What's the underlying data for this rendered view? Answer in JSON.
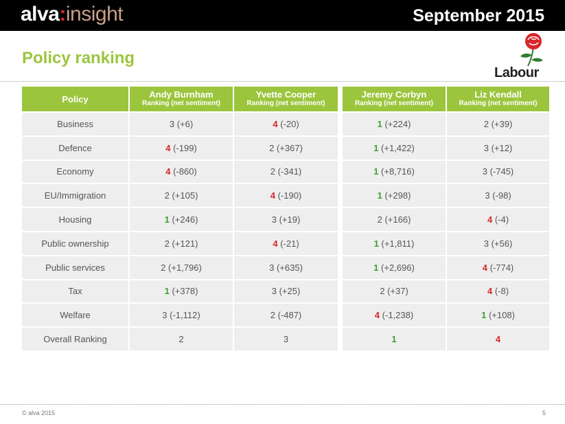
{
  "header": {
    "logo_main": "alva",
    "logo_colon": ":",
    "logo_sub": "insight",
    "date": "September 2015"
  },
  "title": "Policy ranking",
  "brand": "Labour",
  "colors": {
    "accent_green": "#9bc53d",
    "rank_first": "#3f9d2f",
    "rank_last": "#d8262c"
  },
  "table": {
    "policy_header": "Policy",
    "candidates": [
      {
        "name": "Andy Burnham",
        "sub": "Ranking (net sentiment)"
      },
      {
        "name": "Yvette Cooper",
        "sub": "Ranking (net sentiment)"
      },
      {
        "name": "Jeremy Corbyn",
        "sub": "Ranking (net sentiment)"
      },
      {
        "name": "Liz Kendall",
        "sub": "Ranking (net sentiment)"
      }
    ],
    "rows": [
      {
        "policy": "Business",
        "cells": [
          {
            "rank": "3",
            "val": "(+6)"
          },
          {
            "rank": "4",
            "val": "(-20)"
          },
          {
            "rank": "1",
            "val": "(+224)"
          },
          {
            "rank": "2",
            "val": "(+39)"
          }
        ]
      },
      {
        "policy": "Defence",
        "cells": [
          {
            "rank": "4",
            "val": "(-199)"
          },
          {
            "rank": "2",
            "val": "(+367)"
          },
          {
            "rank": "1",
            "val": "(+1,422)"
          },
          {
            "rank": "3",
            "val": "(+12)"
          }
        ]
      },
      {
        "policy": "Economy",
        "cells": [
          {
            "rank": "4",
            "val": "(-860)"
          },
          {
            "rank": "2",
            "val": "(-341)"
          },
          {
            "rank": "1",
            "val": "(+8,716)"
          },
          {
            "rank": "3",
            "val": "(-745)"
          }
        ]
      },
      {
        "policy": "EU/Immigration",
        "cells": [
          {
            "rank": "2",
            "val": "(+105)"
          },
          {
            "rank": "4",
            "val": "(-190)"
          },
          {
            "rank": "1",
            "val": "(+298)"
          },
          {
            "rank": "3",
            "val": "(-98)"
          }
        ]
      },
      {
        "policy": "Housing",
        "cells": [
          {
            "rank": "1",
            "val": "(+246)"
          },
          {
            "rank": "3",
            "val": "(+19)"
          },
          {
            "rank": "2",
            "val": "(+166)"
          },
          {
            "rank": "4",
            "val": "(-4)"
          }
        ]
      },
      {
        "policy": "Public ownership",
        "cells": [
          {
            "rank": "2",
            "val": "(+121)"
          },
          {
            "rank": "4",
            "val": "(-21)"
          },
          {
            "rank": "1",
            "val": "(+1,811)"
          },
          {
            "rank": "3",
            "val": "(+56)"
          }
        ]
      },
      {
        "policy": "Public services",
        "cells": [
          {
            "rank": "2",
            "val": "(+1,796)"
          },
          {
            "rank": "3",
            "val": "(+635)"
          },
          {
            "rank": "1",
            "val": "(+2,696)"
          },
          {
            "rank": "4",
            "val": "(-774)"
          }
        ]
      },
      {
        "policy": "Tax",
        "cells": [
          {
            "rank": "1",
            "val": "(+378)"
          },
          {
            "rank": "3",
            "val": "(+25)"
          },
          {
            "rank": "2",
            "val": "(+37)"
          },
          {
            "rank": "4",
            "val": "(-8)"
          }
        ]
      },
      {
        "policy": "Welfare",
        "cells": [
          {
            "rank": "3",
            "val": "(-1,112)"
          },
          {
            "rank": "2",
            "val": "(-487)"
          },
          {
            "rank": "4",
            "val": "(-1,238)"
          },
          {
            "rank": "1",
            "val": "(+108)"
          }
        ]
      },
      {
        "policy": "Overall Ranking",
        "cells": [
          {
            "rank": "2",
            "val": ""
          },
          {
            "rank": "3",
            "val": ""
          },
          {
            "rank": "1",
            "val": ""
          },
          {
            "rank": "4",
            "val": ""
          }
        ]
      }
    ]
  },
  "footer": {
    "copyright": "© alva 2015",
    "page": "5"
  }
}
